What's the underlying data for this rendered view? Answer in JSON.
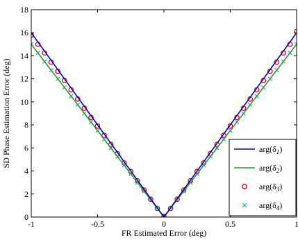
{
  "chart_data": {
    "type": "line",
    "title": "",
    "xlabel": "FR Estimated Error (deg)",
    "ylabel": "SD Phase Estimation Error (deg)",
    "xlim": [
      -1,
      1
    ],
    "ylim": [
      0,
      18
    ],
    "xticks": [
      -1,
      -0.5,
      0,
      0.5,
      1
    ],
    "xtick_labels": [
      "-1",
      "-0.5",
      "0",
      "0.5",
      "1"
    ],
    "yticks": [
      0,
      2,
      4,
      6,
      8,
      10,
      12,
      14,
      16,
      18
    ],
    "ytick_labels": [
      "0",
      "2",
      "4",
      "6",
      "8",
      "10",
      "12",
      "14",
      "16",
      "18"
    ],
    "grid": false,
    "legend_position": "bottom-right",
    "x": [
      -1,
      -0.95,
      -0.9,
      -0.85,
      -0.8,
      -0.75,
      -0.7,
      -0.65,
      -0.6,
      -0.55,
      -0.5,
      -0.45,
      -0.4,
      -0.35,
      -0.3,
      -0.25,
      -0.2,
      -0.15,
      -0.1,
      -0.05,
      0,
      0.05,
      0.1,
      0.15,
      0.2,
      0.25,
      0.3,
      0.35,
      0.4,
      0.45,
      0.5,
      0.55,
      0.6,
      0.65,
      0.7,
      0.75,
      0.8,
      0.85,
      0.9,
      0.95,
      1
    ],
    "series": [
      {
        "name": "arg(δ1)",
        "label_base": "arg(δ",
        "label_sub": "1",
        "label_end": ")",
        "style": "line",
        "color": "#0000cc",
        "values": [
          16.0,
          15.2,
          14.4,
          13.6,
          12.8,
          12.0,
          11.2,
          10.4,
          9.6,
          8.8,
          8.0,
          7.2,
          6.4,
          5.6,
          4.8,
          4.0,
          3.2,
          2.4,
          1.6,
          0.8,
          0.0,
          0.8,
          1.6,
          2.4,
          3.2,
          4.0,
          4.8,
          5.6,
          6.4,
          7.2,
          8.0,
          8.8,
          9.6,
          10.4,
          11.2,
          12.0,
          12.8,
          13.6,
          14.4,
          15.2,
          16.0
        ]
      },
      {
        "name": "arg(δ2)",
        "label_base": "arg(δ",
        "label_sub": "2",
        "label_end": ")",
        "style": "line",
        "color": "#2e9e2e",
        "values": [
          15.0,
          14.25,
          13.5,
          12.75,
          12.0,
          11.25,
          10.5,
          9.75,
          9.0,
          8.25,
          7.5,
          6.75,
          6.0,
          5.25,
          4.5,
          3.75,
          3.0,
          2.25,
          1.5,
          0.75,
          0.0,
          0.75,
          1.5,
          2.25,
          3.0,
          3.75,
          4.5,
          5.25,
          6.0,
          6.75,
          7.5,
          8.25,
          9.0,
          9.75,
          10.5,
          11.25,
          12.0,
          12.75,
          13.5,
          14.25,
          15.0
        ]
      },
      {
        "name": "arg(δ3)",
        "label_base": "arg(δ",
        "label_sub": "3",
        "label_end": ")",
        "style": "circle",
        "color": "#e00000",
        "values": [
          15.8,
          15.0,
          14.25,
          13.45,
          12.65,
          11.85,
          11.05,
          10.25,
          9.45,
          8.65,
          7.9,
          7.1,
          6.3,
          5.5,
          4.7,
          3.95,
          3.15,
          2.35,
          1.55,
          0.75,
          0.05,
          0.75,
          1.55,
          2.35,
          3.15,
          3.95,
          4.7,
          5.5,
          6.3,
          7.1,
          7.9,
          8.65,
          9.45,
          10.25,
          11.05,
          11.85,
          12.65,
          13.45,
          14.25,
          15.0,
          16.1
        ]
      },
      {
        "name": "arg(δ4)",
        "label_base": "arg(δ",
        "label_sub": "4",
        "label_end": ")",
        "style": "x",
        "color": "#1fb5b5",
        "values": [
          15.0,
          14.25,
          13.5,
          12.75,
          12.0,
          11.25,
          10.5,
          9.75,
          9.0,
          8.25,
          7.5,
          6.75,
          6.0,
          5.25,
          4.5,
          3.75,
          3.0,
          2.25,
          1.5,
          0.75,
          0.0,
          0.75,
          1.5,
          2.25,
          3.0,
          3.75,
          4.5,
          5.25,
          6.0,
          6.75,
          7.5,
          8.25,
          9.0,
          9.75,
          10.5,
          11.25,
          12.0,
          12.75,
          13.5,
          14.25,
          15.0
        ]
      }
    ]
  }
}
